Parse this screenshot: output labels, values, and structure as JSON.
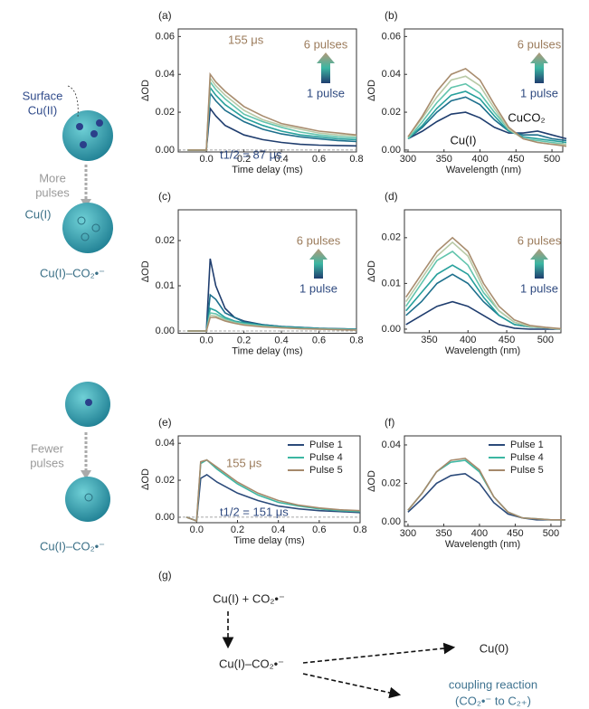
{
  "chart_data": [
    {
      "type": "line",
      "panel": "(a)",
      "x_label": "Time delay (ms)",
      "y_label": "ΔOD",
      "zero_line": true,
      "x": [
        -0.1,
        -0.05,
        0,
        0.02,
        0.05,
        0.1,
        0.2,
        0.3,
        0.4,
        0.5,
        0.6,
        0.7,
        0.8
      ],
      "series": [
        {
          "color": "#1f3d6e",
          "values": [
            0,
            0,
            0,
            0.022,
            0.018,
            0.013,
            0.008,
            0.0055,
            0.004,
            0.003,
            0.0026,
            0.0024,
            0.0022
          ]
        },
        {
          "color": "#1d6f8c",
          "values": [
            0,
            0,
            0,
            0.03,
            0.026,
            0.021,
            0.015,
            0.011,
            0.0085,
            0.007,
            0.006,
            0.005,
            0.0045
          ]
        },
        {
          "color": "#27a09c",
          "values": [
            0,
            0,
            0,
            0.033,
            0.029,
            0.024,
            0.017,
            0.013,
            0.01,
            0.008,
            0.007,
            0.006,
            0.0055
          ]
        },
        {
          "color": "#62c4ad",
          "values": [
            0,
            0,
            0,
            0.036,
            0.032,
            0.027,
            0.019,
            0.015,
            0.012,
            0.0095,
            0.008,
            0.007,
            0.0065
          ]
        },
        {
          "color": "#b8c9a6",
          "values": [
            0,
            0,
            0,
            0.038,
            0.034,
            0.029,
            0.021,
            0.016,
            0.013,
            0.011,
            0.009,
            0.008,
            0.0075
          ]
        },
        {
          "color": "#a88c6e",
          "values": [
            0,
            0,
            0,
            0.04,
            0.036,
            0.031,
            0.023,
            0.018,
            0.014,
            0.012,
            0.01,
            0.009,
            0.008
          ]
        }
      ],
      "xlim": [
        -0.15,
        0.8
      ],
      "ylim": [
        -0.001,
        0.064
      ],
      "xticks": [
        {
          "value": 0,
          "label": "0.0"
        },
        {
          "value": 0.2,
          "label": "0.2"
        },
        {
          "value": 0.4,
          "label": "0.4"
        },
        {
          "value": 0.6,
          "label": "0.6"
        },
        {
          "value": 0.8,
          "label": "0.8"
        }
      ],
      "yticks": [
        {
          "value": 0,
          "label": "0.00"
        },
        {
          "value": 0.02,
          "label": "0.02"
        },
        {
          "value": 0.04,
          "label": "0.04"
        },
        {
          "value": 0.06,
          "label": "0.06"
        }
      ],
      "annotations": [
        "155 μs",
        "6 pulses",
        "1 pulse",
        "t1/2 = 87 μs"
      ]
    },
    {
      "type": "line",
      "panel": "(b)",
      "x_label": "Wavelength (nm)",
      "y_label": "ΔOD",
      "zero_line": false,
      "x": [
        300,
        320,
        340,
        360,
        380,
        400,
        420,
        440,
        460,
        480,
        500,
        520
      ],
      "series": [
        {
          "color": "#1f3d6e",
          "values": [
            0.006,
            0.01,
            0.015,
            0.019,
            0.02,
            0.017,
            0.012,
            0.009,
            0.009,
            0.01,
            0.008,
            0.006
          ]
        },
        {
          "color": "#1d6f8c",
          "values": [
            0.006,
            0.012,
            0.02,
            0.026,
            0.028,
            0.024,
            0.016,
            0.01,
            0.008,
            0.008,
            0.006,
            0.005
          ]
        },
        {
          "color": "#27a09c",
          "values": [
            0.006,
            0.013,
            0.022,
            0.029,
            0.031,
            0.027,
            0.018,
            0.01,
            0.007,
            0.006,
            0.005,
            0.004
          ]
        },
        {
          "color": "#62c4ad",
          "values": [
            0.006,
            0.015,
            0.025,
            0.033,
            0.035,
            0.03,
            0.02,
            0.011,
            0.006,
            0.005,
            0.004,
            0.003
          ]
        },
        {
          "color": "#b8c9a6",
          "values": [
            0.007,
            0.017,
            0.028,
            0.037,
            0.039,
            0.034,
            0.022,
            0.011,
            0.006,
            0.004,
            0.003,
            0.003
          ]
        },
        {
          "color": "#a88c6e",
          "values": [
            0.007,
            0.018,
            0.031,
            0.04,
            0.043,
            0.037,
            0.024,
            0.012,
            0.006,
            0.004,
            0.003,
            0.002
          ]
        }
      ],
      "xlim": [
        295,
        515
      ],
      "ylim": [
        -0.001,
        0.064
      ],
      "xticks": [
        300,
        350,
        400,
        450,
        500
      ],
      "yticks": [
        {
          "value": 0,
          "label": "0.00"
        },
        {
          "value": 0.02,
          "label": "0.02"
        },
        {
          "value": 0.04,
          "label": "0.04"
        },
        {
          "value": 0.06,
          "label": "0.06"
        }
      ],
      "annotations": [
        "6 pulses",
        "1 pulse",
        "CuCO₂",
        "Cu(I)"
      ]
    },
    {
      "type": "line",
      "panel": "(c)",
      "x_label": "Time delay (ms)",
      "y_label": "ΔOD",
      "zero_line": true,
      "x": [
        -0.1,
        0,
        0.02,
        0.05,
        0.1,
        0.15,
        0.2,
        0.3,
        0.4,
        0.5,
        0.6,
        0.7,
        0.8
      ],
      "series": [
        {
          "color": "#1f3d6e",
          "values": [
            0,
            0,
            0.016,
            0.01,
            0.005,
            0.003,
            0.0022,
            0.0014,
            0.001,
            0.0008,
            0.0006,
            0.0005,
            0.0004
          ]
        },
        {
          "color": "#1d6f8c",
          "values": [
            0,
            0,
            0.008,
            0.007,
            0.004,
            0.003,
            0.002,
            0.0014,
            0.001,
            0.0008,
            0.0006,
            0.0005,
            0.0004
          ]
        },
        {
          "color": "#27a09c",
          "values": [
            0,
            0,
            0.005,
            0.0045,
            0.003,
            0.0022,
            0.0018,
            0.0012,
            0.0009,
            0.0007,
            0.0005,
            0.0004,
            0.0003
          ]
        },
        {
          "color": "#62c4ad",
          "values": [
            0,
            0,
            0.004,
            0.0038,
            0.0027,
            0.002,
            0.0016,
            0.0011,
            0.0008,
            0.0006,
            0.0005,
            0.0004,
            0.0003
          ]
        },
        {
          "color": "#b8c9a6",
          "values": [
            0,
            0,
            0.0035,
            0.0033,
            0.0024,
            0.0018,
            0.0014,
            0.001,
            0.0007,
            0.0005,
            0.0004,
            0.0003,
            0.0002
          ]
        },
        {
          "color": "#a88c6e",
          "values": [
            0,
            0,
            0.003,
            0.003,
            0.0022,
            0.0017,
            0.0013,
            0.0009,
            0.0007,
            0.0005,
            0.0004,
            0.0003,
            0.0002
          ]
        }
      ],
      "xlim": [
        -0.15,
        0.8
      ],
      "ylim": [
        -0.0005,
        0.0268
      ],
      "xticks": [
        {
          "value": 0,
          "label": "0.0"
        },
        {
          "value": 0.2,
          "label": "0.2"
        },
        {
          "value": 0.4,
          "label": "0.4"
        },
        {
          "value": 0.6,
          "label": "0.6"
        },
        {
          "value": 0.8,
          "label": "0.8"
        }
      ],
      "yticks": [
        {
          "value": 0,
          "label": "0.00"
        },
        {
          "value": 0.01,
          "label": "0.01"
        },
        {
          "value": 0.02,
          "label": "0.02"
        }
      ],
      "annotations": [
        "6 pulses",
        "1 pulse"
      ]
    },
    {
      "type": "line",
      "panel": "(d)",
      "x_label": "Wavelength (nm)",
      "y_label": "ΔOD",
      "zero_line": false,
      "x": [
        320,
        340,
        360,
        380,
        400,
        420,
        440,
        460,
        480,
        500,
        520
      ],
      "series": [
        {
          "color": "#1f3d6e",
          "values": [
            0.001,
            0.003,
            0.005,
            0.006,
            0.005,
            0.003,
            0.001,
            0.0002,
            0,
            0,
            0
          ]
        },
        {
          "color": "#1d6f8c",
          "values": [
            0.003,
            0.006,
            0.01,
            0.012,
            0.01,
            0.006,
            0.003,
            0.001,
            0.0005,
            0.0003,
            0
          ]
        },
        {
          "color": "#27a09c",
          "values": [
            0.004,
            0.008,
            0.012,
            0.014,
            0.012,
            0.007,
            0.003,
            0.001,
            0.0005,
            0.0003,
            0
          ]
        },
        {
          "color": "#62c4ad",
          "values": [
            0.005,
            0.01,
            0.015,
            0.017,
            0.014,
            0.008,
            0.004,
            0.0015,
            0.0006,
            0.0003,
            0
          ]
        },
        {
          "color": "#b8c9a6",
          "values": [
            0.006,
            0.011,
            0.016,
            0.019,
            0.016,
            0.009,
            0.004,
            0.0015,
            0.0006,
            0.0003,
            0
          ]
        },
        {
          "color": "#a88c6e",
          "values": [
            0.007,
            0.012,
            0.017,
            0.02,
            0.017,
            0.01,
            0.005,
            0.002,
            0.0008,
            0.0004,
            0.0001
          ]
        }
      ],
      "xlim": [
        318,
        520
      ],
      "ylim": [
        -0.0008,
        0.0261
      ],
      "xticks": [
        350,
        400,
        450,
        500
      ],
      "yticks": [
        {
          "value": 0,
          "label": "0.00"
        },
        {
          "value": 0.01,
          "label": "0.01"
        },
        {
          "value": 0.02,
          "label": "0.02"
        }
      ],
      "annotations": [
        "6 pulses",
        "1 pulse"
      ]
    },
    {
      "type": "line",
      "panel": "(e)",
      "x_label": "Time delay (ms)",
      "y_label": "ΔOD",
      "zero_line": true,
      "legend": "upper right",
      "x": [
        -0.05,
        0,
        0.02,
        0.05,
        0.1,
        0.2,
        0.3,
        0.4,
        0.5,
        0.6,
        0.7,
        0.8
      ],
      "series": [
        {
          "name": "Pulse 1",
          "color": "#2b4a7a",
          "values": [
            0,
            -0.002,
            0.021,
            0.023,
            0.019,
            0.013,
            0.009,
            0.006,
            0.0045,
            0.0035,
            0.003,
            0.0025
          ]
        },
        {
          "name": "Pulse 4",
          "color": "#3cb6a2",
          "values": [
            0,
            -0.002,
            0.029,
            0.031,
            0.026,
            0.018,
            0.012,
            0.008,
            0.006,
            0.0045,
            0.0035,
            0.003
          ]
        },
        {
          "name": "Pulse 5",
          "color": "#a5896b",
          "values": [
            0,
            -0.002,
            0.03,
            0.031,
            0.027,
            0.019,
            0.013,
            0.009,
            0.0065,
            0.005,
            0.004,
            0.0035
          ]
        }
      ],
      "xlim": [
        -0.09,
        0.8
      ],
      "ylim": [
        -0.003,
        0.044
      ],
      "xticks": [
        {
          "value": 0,
          "label": "0.0"
        },
        {
          "value": 0.2,
          "label": "0.2"
        },
        {
          "value": 0.4,
          "label": "0.4"
        },
        {
          "value": 0.6,
          "label": "0.6"
        },
        {
          "value": 0.8,
          "label": "0.8"
        }
      ],
      "yticks": [
        {
          "value": 0,
          "label": "0.00"
        },
        {
          "value": 0.02,
          "label": "0.02"
        },
        {
          "value": 0.04,
          "label": "0.04"
        }
      ],
      "annotations": [
        "155 μs",
        "t1/2 = 151 μs"
      ]
    },
    {
      "type": "line",
      "panel": "(f)",
      "x_label": "Wavelength (nm)",
      "y_label": "ΔOD",
      "zero_line": false,
      "legend": "upper right",
      "x": [
        300,
        320,
        340,
        360,
        380,
        400,
        420,
        440,
        460,
        480,
        500,
        520
      ],
      "series": [
        {
          "name": "Pulse 1",
          "color": "#2b4a7a",
          "values": [
            0.005,
            0.012,
            0.02,
            0.024,
            0.025,
            0.02,
            0.01,
            0.004,
            0.002,
            0.001,
            0.001,
            0.001
          ]
        },
        {
          "name": "Pulse 4",
          "color": "#3cb6a2",
          "values": [
            0.006,
            0.015,
            0.026,
            0.031,
            0.032,
            0.026,
            0.013,
            0.005,
            0.002,
            0.0015,
            0.001,
            0.001
          ]
        },
        {
          "name": "Pulse 5",
          "color": "#a5896b",
          "values": [
            0.006,
            0.015,
            0.026,
            0.032,
            0.033,
            0.027,
            0.013,
            0.005,
            0.002,
            0.0015,
            0.001,
            0.001
          ]
        }
      ],
      "xlim": [
        295,
        514
      ],
      "ylim": [
        -0.0024,
        0.0447
      ],
      "xticks": [
        300,
        350,
        400,
        450,
        500
      ],
      "yticks": [
        {
          "value": 0,
          "label": "0.00"
        },
        {
          "value": 0.02,
          "label": "0.02"
        },
        {
          "value": 0.04,
          "label": "0.04"
        }
      ],
      "annotations": []
    }
  ],
  "schematic": {
    "surface": [
      "Surface",
      "Cu(II)"
    ],
    "more": [
      "More",
      "pulses"
    ],
    "cu1": "Cu(I)",
    "adduct_top": "Cu(I)–CO₂•⁻",
    "fewer": [
      "Fewer",
      "pulses"
    ],
    "adduct_bottom": "Cu(I)–CO₂•⁻"
  },
  "scheme_g": {
    "label": "(g)",
    "reactants": "Cu(I) + CO₂•⁻",
    "adduct": "Cu(I)–CO₂•⁻",
    "product": "Cu(0)",
    "coupling": [
      "coupling reaction",
      "(CO₂•⁻ to C₂₊)"
    ]
  }
}
